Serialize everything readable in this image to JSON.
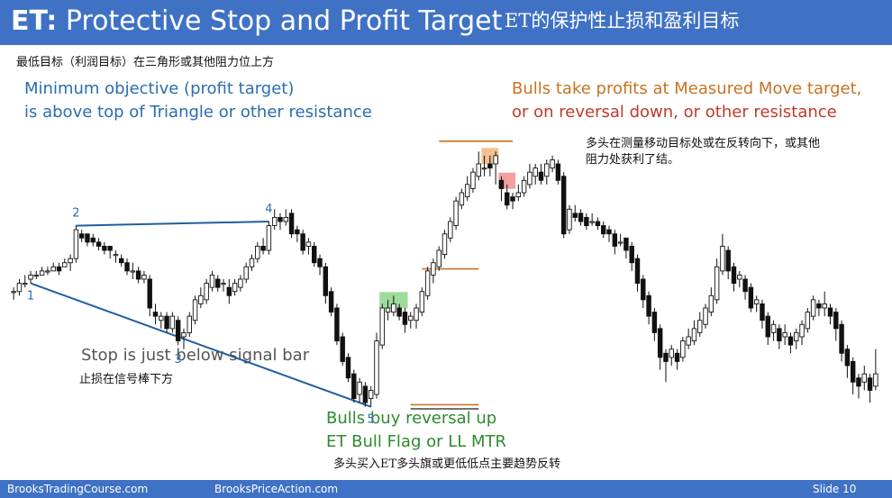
{
  "header": {
    "title_prefix": "ET:",
    "title_rest": "Protective Stop and Profit Target",
    "title_cn": "ET的保护性止损和盈利目标"
  },
  "subtitle_cn": "最低目标（利润目标）在三角形或其他阻力位上方",
  "annotations": {
    "min_objective_line1": "Minimum objective (profit target)",
    "min_objective_line2": "is above top of Triangle or other resistance",
    "bulls_take_line1": "Bulls take profits at Measured Move target,",
    "bulls_take_line2": "or on reversal down, or other resistance",
    "bulls_take_cn_line1": "多头在测量移动目标处或在反转向下，或其他",
    "bulls_take_cn_line2": "阻力处获利了结。",
    "stop_en": "Stop is just below signal bar",
    "stop_cn": "止损在信号棒下方",
    "bulls_buy_line1": "Bulls buy reversal up",
    "bulls_buy_line2": "ET Bull Flag or LL MTR",
    "bulls_buy_cn": "多头买入ET多头旗或更低低点主要趋势反转"
  },
  "footer": {
    "left": "BrooksTradingCourse.com",
    "middle": "BrooksPriceAction.com",
    "slide": "Slide 10"
  },
  "chart_data": {
    "type": "candlestick",
    "title": "",
    "bars": [
      [
        0,
        0,
        1,
        -2,
        1
      ],
      [
        0,
        2,
        3,
        -1,
        2
      ],
      [
        2,
        2,
        4,
        1,
        3
      ],
      [
        3,
        4,
        5,
        2,
        4
      ],
      [
        4,
        4,
        5,
        3,
        4
      ],
      [
        4,
        5,
        6,
        4,
        5
      ],
      [
        5,
        5,
        6,
        4,
        5
      ],
      [
        5,
        6,
        7,
        5,
        6
      ],
      [
        6,
        5,
        7,
        4,
        6
      ],
      [
        6,
        7,
        8,
        6,
        7
      ],
      [
        7,
        8,
        9,
        5,
        8
      ],
      [
        8,
        15,
        16,
        7,
        14
      ],
      [
        14,
        13,
        15,
        12,
        14
      ],
      [
        14,
        12,
        14,
        11,
        13
      ],
      [
        13,
        12,
        14,
        11,
        12
      ],
      [
        12,
        11,
        13,
        10,
        11
      ],
      [
        11,
        10,
        12,
        9,
        11
      ],
      [
        11,
        10,
        11,
        8,
        9
      ],
      [
        9,
        9,
        10,
        7,
        8
      ],
      [
        8,
        7,
        9,
        6,
        7
      ],
      [
        7,
        5,
        8,
        4,
        5
      ],
      [
        5,
        5,
        7,
        3,
        5
      ],
      [
        5,
        3,
        6,
        2,
        3
      ],
      [
        3,
        4,
        5,
        2,
        3
      ],
      [
        3,
        -4,
        4,
        -6,
        -5
      ],
      [
        -5,
        -6,
        -3,
        -8,
        -7
      ],
      [
        -7,
        -6,
        -5,
        -9,
        -6
      ],
      [
        -6,
        -9,
        -5,
        -10,
        -9
      ],
      [
        -9,
        -6,
        -5,
        -10,
        -7
      ],
      [
        -7,
        -12,
        -6,
        -13,
        -11
      ],
      [
        -11,
        -10,
        -9,
        -14,
        -10
      ],
      [
        -10,
        -6,
        -5,
        -11,
        -7
      ],
      [
        -7,
        -2,
        -1,
        -8,
        -3
      ],
      [
        -3,
        -1,
        1,
        -4,
        -2
      ],
      [
        -2,
        2,
        3,
        -3,
        1
      ],
      [
        1,
        4,
        5,
        0,
        3
      ],
      [
        3,
        1,
        4,
        0,
        2
      ],
      [
        2,
        2,
        3,
        0,
        1
      ],
      [
        1,
        -1,
        3,
        -3,
        0
      ],
      [
        0,
        2,
        3,
        -1,
        1
      ],
      [
        1,
        3,
        4,
        0,
        3
      ],
      [
        3,
        6,
        7,
        2,
        6
      ],
      [
        6,
        8,
        9,
        5,
        8
      ],
      [
        8,
        11,
        12,
        7,
        11
      ],
      [
        11,
        10,
        13,
        9,
        10
      ],
      [
        10,
        16,
        17,
        9,
        16
      ],
      [
        16,
        18,
        20,
        15,
        18
      ],
      [
        18,
        17,
        19,
        15,
        17
      ],
      [
        17,
        18,
        20,
        16,
        19
      ],
      [
        19,
        14,
        20,
        13,
        15
      ],
      [
        15,
        14,
        16,
        12,
        14
      ],
      [
        14,
        10,
        15,
        9,
        11
      ],
      [
        11,
        12,
        13,
        9,
        11
      ],
      [
        11,
        7,
        12,
        6,
        8
      ],
      [
        8,
        6,
        9,
        4,
        6
      ],
      [
        6,
        -1,
        7,
        -3,
        0
      ],
      [
        0,
        -5,
        1,
        -6,
        -4
      ],
      [
        -4,
        -12,
        -3,
        -13,
        -11
      ],
      [
        -11,
        -17,
        -10,
        -18,
        -16
      ],
      [
        -16,
        -21,
        -15,
        -22,
        -20
      ],
      [
        -20,
        -26,
        -19,
        -27,
        -25
      ],
      [
        -25,
        -22,
        -21,
        -27,
        -23
      ],
      [
        -23,
        -27,
        -22,
        -28,
        -26
      ],
      [
        -26,
        -24,
        -23,
        -28,
        -25
      ],
      [
        -25,
        -12,
        -10,
        -26,
        -13
      ],
      [
        -13,
        -4,
        -3,
        -14,
        -5
      ],
      [
        -5,
        -4,
        -2,
        -7,
        -5
      ],
      [
        -5,
        -3,
        -1,
        -6,
        -4
      ],
      [
        -4,
        -6,
        -3,
        -7,
        -5
      ],
      [
        -5,
        -8,
        -4,
        -10,
        -7
      ],
      [
        -7,
        -6,
        -5,
        -9,
        -7
      ],
      [
        -7,
        -4,
        -3,
        -9,
        -5
      ],
      [
        -5,
        0,
        1,
        -6,
        -1
      ],
      [
        -1,
        5,
        6,
        -2,
        4
      ],
      [
        4,
        7,
        8,
        2,
        6
      ],
      [
        6,
        10,
        11,
        5,
        9
      ],
      [
        9,
        14,
        15,
        8,
        13
      ],
      [
        13,
        17,
        18,
        12,
        16
      ],
      [
        16,
        22,
        23,
        15,
        21
      ],
      [
        21,
        24,
        25,
        20,
        23
      ],
      [
        23,
        26,
        28,
        22,
        25
      ],
      [
        25,
        29,
        30,
        24,
        28
      ],
      [
        28,
        31,
        34,
        27,
        30
      ],
      [
        30,
        30,
        33,
        28,
        31
      ],
      [
        31,
        30,
        33,
        28,
        31
      ],
      [
        31,
        33,
        34,
        26,
        27
      ],
      [
        27,
        25,
        28,
        22,
        24
      ],
      [
        24,
        21,
        26,
        20,
        23
      ],
      [
        23,
        22,
        24,
        20,
        23
      ],
      [
        23,
        24,
        26,
        22,
        24
      ],
      [
        24,
        27,
        28,
        23,
        26
      ],
      [
        26,
        29,
        31,
        25,
        28
      ],
      [
        28,
        30,
        31,
        26,
        29
      ],
      [
        29,
        27,
        31,
        26,
        28
      ],
      [
        28,
        31,
        32,
        26,
        30
      ],
      [
        30,
        32,
        33,
        29,
        31
      ],
      [
        31,
        27,
        32,
        26,
        28
      ],
      [
        28,
        14,
        29,
        13,
        15
      ],
      [
        15,
        20,
        21,
        14,
        19
      ],
      [
        19,
        18,
        21,
        17,
        19
      ],
      [
        19,
        17,
        20,
        16,
        18
      ],
      [
        18,
        16,
        19,
        15,
        17
      ],
      [
        17,
        17,
        19,
        16,
        17
      ],
      [
        17,
        16,
        18,
        15,
        16
      ],
      [
        16,
        14,
        17,
        13,
        15
      ],
      [
        15,
        14,
        16,
        12,
        14
      ],
      [
        14,
        11,
        15,
        9,
        12
      ],
      [
        12,
        12,
        14,
        11,
        13
      ],
      [
        13,
        10,
        13,
        8,
        11
      ],
      [
        11,
        7,
        12,
        5,
        8
      ],
      [
        8,
        2,
        9,
        0,
        3
      ],
      [
        3,
        -2,
        4,
        -4,
        -1
      ],
      [
        -1,
        -6,
        0,
        -8,
        -5
      ],
      [
        -5,
        -10,
        -4,
        -12,
        -9
      ],
      [
        -9,
        -16,
        -8,
        -19,
        -15
      ],
      [
        -15,
        -17,
        -14,
        -22,
        -16
      ],
      [
        -16,
        -14,
        -13,
        -18,
        -15
      ],
      [
        -15,
        -17,
        -14,
        -19,
        -16
      ],
      [
        -16,
        -12,
        -11,
        -17,
        -13
      ],
      [
        -13,
        -11,
        -9,
        -14,
        -12
      ],
      [
        -12,
        -9,
        -7,
        -13,
        -10
      ],
      [
        -10,
        -7,
        -5,
        -11,
        -8
      ],
      [
        -8,
        -4,
        -3,
        -9,
        -5
      ],
      [
        -5,
        -1,
        1,
        -6,
        -2
      ],
      [
        -2,
        6,
        8,
        -3,
        5
      ],
      [
        5,
        11,
        14,
        4,
        10
      ],
      [
        10,
        5,
        11,
        3,
        6
      ],
      [
        6,
        2,
        7,
        0,
        3
      ],
      [
        3,
        4,
        5,
        1,
        3
      ],
      [
        3,
        0,
        4,
        -2,
        1
      ],
      [
        1,
        -4,
        2,
        -5,
        -3
      ],
      [
        -3,
        -2,
        -1,
        -5,
        -3
      ],
      [
        -3,
        -7,
        -2,
        -9,
        -6
      ],
      [
        -6,
        -11,
        -5,
        -13,
        -10
      ],
      [
        -10,
        -8,
        -7,
        -12,
        -9
      ],
      [
        -9,
        -12,
        -8,
        -14,
        -11
      ],
      [
        -11,
        -10,
        -8,
        -13,
        -11
      ],
      [
        -11,
        -13,
        -10,
        -15,
        -12
      ],
      [
        -12,
        -10,
        -9,
        -14,
        -11
      ],
      [
        -11,
        -8,
        -7,
        -13,
        -9
      ],
      [
        -9,
        -5,
        -4,
        -10,
        -6
      ],
      [
        -6,
        -2,
        -1,
        -7,
        -3
      ],
      [
        -3,
        -4,
        -2,
        -6,
        -4
      ],
      [
        -4,
        -3,
        0,
        -6,
        -4
      ],
      [
        -4,
        -6,
        -3,
        -8,
        -5
      ],
      [
        -5,
        -9,
        -4,
        -12,
        -8
      ],
      [
        -8,
        -15,
        -7,
        -17,
        -14
      ],
      [
        -14,
        -18,
        -13,
        -21,
        -17
      ],
      [
        -17,
        -22,
        -16,
        -25,
        -21
      ],
      [
        -21,
        -23,
        -20,
        -26,
        -22
      ],
      [
        -22,
        -20,
        -18,
        -24,
        -21
      ],
      [
        -21,
        -24,
        -20,
        -27,
        -23
      ],
      [
        -23,
        -20,
        -14,
        -24,
        -19
      ]
    ],
    "bar_fields": [
      "open",
      "close",
      "high",
      "low",
      "index_unused"
    ],
    "labels": [
      "1",
      "2",
      "3",
      "4",
      "5"
    ],
    "label_positions_in_bars": [
      3,
      11,
      29,
      45,
      63
    ],
    "triangle": {
      "apex_points": [
        "1",
        "2",
        "3",
        "4",
        "5"
      ]
    },
    "horizontal_levels": [
      {
        "kind": "resistance-line",
        "color": "#c87322",
        "value": 36.5
      },
      {
        "kind": "triangle-top-line",
        "color": "#c87322",
        "value": 5.5
      },
      {
        "kind": "stop-line",
        "color": "#c87322",
        "value": -27.5
      },
      {
        "kind": "signal-bar-low-line",
        "color": "#444444",
        "value": -28.5
      }
    ],
    "highlights": [
      {
        "kind": "entry",
        "color": "#7ccf7c",
        "bars": [
          65,
          69
        ]
      },
      {
        "kind": "take-profit",
        "color": "#f2a96a",
        "bars": [
          83,
          85
        ]
      },
      {
        "kind": "reversal",
        "color": "#f08080",
        "bars": [
          86,
          88
        ]
      }
    ],
    "grid": false,
    "legend": "none"
  }
}
